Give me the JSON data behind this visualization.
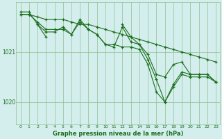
{
  "title": "Graphe pression niveau de la mer (hPa)",
  "bg_color": "#d4eeee",
  "grid_color": "#90c090",
  "line_color": "#1a6e1a",
  "ylim": [
    1019.55,
    1022.0
  ],
  "yticks": [
    1020,
    1021
  ],
  "xlim": [
    -0.5,
    23.5
  ],
  "x_labels": [
    "0",
    "1",
    "2",
    "3",
    "4",
    "5",
    "6",
    "7",
    "8",
    "9",
    "10",
    "11",
    "12",
    "13",
    "14",
    "15",
    "16",
    "17",
    "18",
    "19",
    "20",
    "21",
    "22",
    "23"
  ],
  "series1": [
    1021.75,
    1021.75,
    1021.7,
    1021.65,
    1021.65,
    1021.65,
    1021.6,
    1021.55,
    1021.55,
    1021.5,
    1021.45,
    1021.4,
    1021.35,
    1021.3,
    1021.25,
    1021.2,
    1021.15,
    1021.1,
    1021.05,
    1021.0,
    1020.95,
    1020.9,
    1020.85,
    1020.8
  ],
  "series2": [
    1021.75,
    1021.75,
    1021.6,
    1021.45,
    1021.45,
    1021.45,
    1021.35,
    1021.6,
    1021.45,
    1021.35,
    1021.15,
    1021.15,
    1021.1,
    1021.1,
    1021.05,
    1020.75,
    1020.2,
    1020.0,
    1020.35,
    1020.6,
    1020.55,
    1020.55,
    1020.55,
    1020.4
  ],
  "series3": [
    1021.8,
    1021.8,
    1021.55,
    1021.4,
    1021.4,
    1021.5,
    1021.35,
    1021.65,
    1021.45,
    1021.35,
    1021.15,
    1021.1,
    1021.5,
    1021.2,
    1021.15,
    1020.85,
    1020.45,
    1020.0,
    1020.3,
    1020.55,
    1020.5,
    1020.5,
    1020.5,
    1020.4
  ],
  "series4": [
    null,
    null,
    1021.55,
    1021.3,
    null,
    1021.45,
    null,
    1021.6,
    null,
    null,
    null,
    null,
    1021.55,
    1021.3,
    1021.15,
    1020.95,
    1020.55,
    1020.5,
    1020.75,
    1020.8,
    1020.55,
    1020.55,
    1020.55,
    1020.4
  ]
}
